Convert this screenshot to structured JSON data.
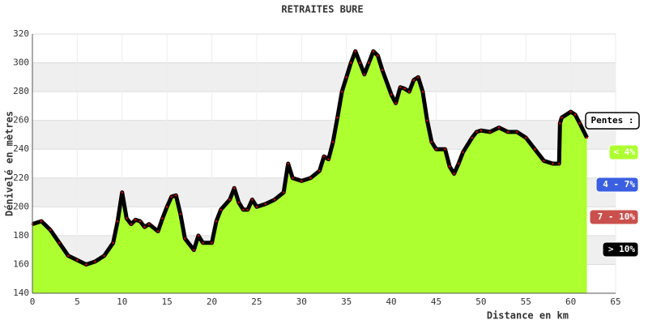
{
  "chart_data": {
    "type": "area",
    "title": "RETRAITES BURE",
    "x_label": "Distance en km",
    "y_label": "Dénivelé en mètres",
    "x": [
      0,
      1,
      2,
      3,
      4,
      5,
      6,
      7,
      8,
      9,
      9.5,
      10,
      10.5,
      11,
      11.5,
      12,
      12.5,
      13,
      14,
      14.5,
      15,
      15.5,
      16,
      16.5,
      17,
      18,
      18.5,
      19,
      20,
      20.5,
      21,
      22,
      22.5,
      23,
      23.5,
      24,
      24.5,
      25,
      26,
      27,
      28,
      28.5,
      29,
      30,
      31,
      32,
      32.5,
      33,
      33.5,
      34,
      34.5,
      35,
      35.5,
      36,
      36.5,
      37,
      37.5,
      38,
      38.5,
      39,
      40,
      40.5,
      41,
      41.5,
      42,
      42.5,
      43,
      43.5,
      44,
      44.5,
      45,
      46,
      46.5,
      47,
      47.5,
      48,
      49,
      49.5,
      50,
      51,
      52,
      53,
      54,
      55,
      56,
      57,
      58,
      58.7,
      58.8,
      59,
      60,
      60.5,
      61,
      61.8
    ],
    "values": [
      188,
      190,
      184,
      175,
      166,
      163,
      160,
      162,
      166,
      175,
      190,
      210,
      192,
      188,
      191,
      190,
      186,
      188,
      183,
      192,
      200,
      207,
      208,
      195,
      178,
      170,
      180,
      175,
      175,
      190,
      198,
      205,
      213,
      203,
      198,
      198,
      205,
      200,
      202,
      205,
      210,
      230,
      220,
      218,
      220,
      225,
      235,
      233,
      245,
      262,
      280,
      290,
      300,
      308,
      300,
      292,
      300,
      308,
      305,
      295,
      278,
      272,
      283,
      282,
      280,
      288,
      290,
      280,
      260,
      245,
      240,
      240,
      228,
      223,
      230,
      238,
      248,
      252,
      253,
      252,
      255,
      252,
      252,
      248,
      240,
      232,
      230,
      230,
      258,
      262,
      266,
      264,
      258,
      248
    ],
    "color": "#adff2f",
    "line_color": "#000000",
    "marker_color": "#cc0000",
    "xlim": [
      0,
      65
    ],
    "xticks": [
      0,
      5,
      10,
      15,
      20,
      25,
      30,
      35,
      40,
      45,
      50,
      55,
      60,
      65
    ],
    "ylim": [
      140,
      320
    ],
    "yticks": [
      140,
      160,
      180,
      200,
      220,
      240,
      260,
      280,
      300,
      320
    ],
    "grid": true,
    "legend": {
      "title": "Pentes :",
      "items": [
        {
          "label": "< 4%",
          "color": "#adff2f"
        },
        {
          "label": "4 - 7%",
          "color": "#3a5fe0"
        },
        {
          "label": "7 - 10%",
          "color": "#c9504d"
        },
        {
          "label": "> 10%",
          "color": "#000000"
        }
      ]
    }
  }
}
